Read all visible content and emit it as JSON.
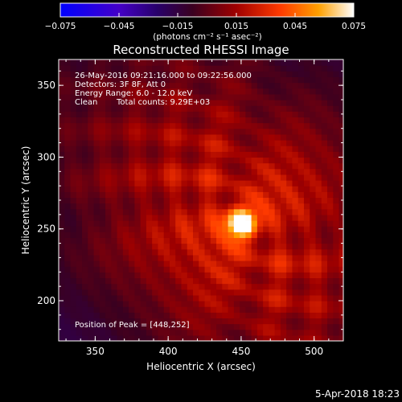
{
  "chart_data": {
    "type": "heatmap",
    "title": "Reconstructed RHESSI Image",
    "xlabel": "Heliocentric X (arcsec)",
    "ylabel": "Heliocentric Y (arcsec)",
    "xlim": [
      325,
      520
    ],
    "ylim": [
      172,
      368
    ],
    "xticks": [
      350,
      400,
      450,
      500
    ],
    "yticks": [
      200,
      250,
      300,
      350
    ],
    "colorbar": {
      "range": [
        -0.075,
        0.075
      ],
      "ticks": [
        "−0.075",
        "−0.045",
        "−0.015",
        "0.015",
        "0.045",
        "0.075"
      ],
      "unit_label": "(photons cm⁻² s⁻¹ asec⁻²)",
      "colors": [
        "#0000ff",
        "#5000c0",
        "#000000",
        "#a00000",
        "#ff4000",
        "#ffa000",
        "#ffffff"
      ]
    },
    "annotations": [
      "26-May-2016 09:21:16.000 to 09:22:56.000",
      "Detectors: 3F 8F, Att 0",
      "Energy Range: 6.0 - 12.0 keV",
      "Clean",
      "Total counts: 9.29E+03"
    ],
    "peak_label": "Position of Peak = [448,252]",
    "peak": {
      "x": 448,
      "y": 252,
      "value": 0.075
    },
    "background_value": -0.02
  },
  "footer": {
    "timestamp": "5-Apr-2018 18:23"
  },
  "colors": {
    "axis": "#ffffff",
    "background": "#000000"
  }
}
